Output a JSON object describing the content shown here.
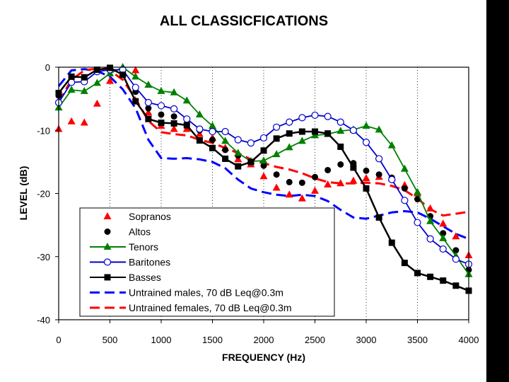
{
  "chart_data": {
    "type": "line",
    "title": "ALL CLASSICFICATIONS",
    "xlabel": "FREQUENCY (Hz)",
    "ylabel": "LEVEL (dB)",
    "xlim": [
      0,
      4000
    ],
    "ylim": [
      -40,
      0
    ],
    "xticks": [
      0,
      500,
      1000,
      1500,
      2000,
      2500,
      3000,
      3500,
      4000
    ],
    "yticks": [
      0,
      -10,
      -20,
      -30,
      -40
    ],
    "grid": "vertical dotted",
    "legend_position": "bottom-left",
    "series": [
      {
        "name": "Sopranos",
        "marker": "triangle",
        "line": "none",
        "color": "#ff0000",
        "x": [
          0,
          125,
          250,
          375,
          500,
          625,
          750,
          875,
          1000,
          1125,
          1250,
          1375,
          1500,
          1625,
          1750,
          1875,
          2000,
          2125,
          2250,
          2375,
          2500,
          2625,
          2750,
          2875,
          3000,
          3125,
          3250,
          3375,
          3500,
          3625,
          3750,
          3875,
          4000
        ],
        "y": [
          -9.8,
          -8.6,
          -8.8,
          -5.8,
          -2.2,
          -1.0,
          -0.5,
          -7.2,
          -9.3,
          -9.8,
          -9.8,
          -10.6,
          -11.2,
          -12.8,
          -14.6,
          -15.4,
          -17.3,
          -19.1,
          -20.2,
          -20.8,
          -19.6,
          -18.6,
          -18.4,
          -18.0,
          -17.6,
          -17.4,
          -17.6,
          -18.7,
          -20.0,
          -22.4,
          -24.8,
          -26.8,
          -29.8
        ]
      },
      {
        "name": "Altos",
        "marker": "circle",
        "line": "none",
        "color": "#000000",
        "x": [
          0,
          125,
          250,
          375,
          500,
          625,
          750,
          875,
          1000,
          1125,
          1250,
          1375,
          1500,
          1625,
          1750,
          1875,
          2000,
          2125,
          2250,
          2375,
          2500,
          2625,
          2750,
          2875,
          3000,
          3125,
          3250,
          3375,
          3500,
          3625,
          3750,
          3875,
          4000
        ],
        "y": [
          -4.5,
          -2.3,
          -2.2,
          -0.6,
          -0.3,
          -0.9,
          -3.9,
          -6.5,
          -7.5,
          -7.8,
          -9.0,
          -10.0,
          -11.5,
          -13.1,
          -14.0,
          -15.0,
          -15.6,
          -17.0,
          -18.2,
          -18.3,
          -17.4,
          -16.3,
          -15.4,
          -15.2,
          -16.4,
          -17.0,
          -17.5,
          -19.2,
          -20.9,
          -23.6,
          -26.3,
          -29.0,
          -32.1
        ]
      },
      {
        "name": "Tenors",
        "marker": "triangle",
        "line": "solid",
        "color": "#008000",
        "x": [
          0,
          125,
          250,
          375,
          500,
          625,
          750,
          875,
          1000,
          1125,
          1250,
          1375,
          1500,
          1625,
          1750,
          1875,
          2000,
          2125,
          2250,
          2375,
          2500,
          2625,
          2750,
          2875,
          3000,
          3125,
          3250,
          3375,
          3500,
          3625,
          3750,
          3875,
          4000
        ],
        "y": [
          -6.4,
          -3.6,
          -3.8,
          -2.5,
          -1.0,
          0.0,
          -1.5,
          -2.8,
          -3.8,
          -4.0,
          -5.3,
          -7.5,
          -9.3,
          -11.7,
          -13.6,
          -14.9,
          -14.8,
          -13.8,
          -12.7,
          -11.7,
          -10.8,
          -10.6,
          -10.1,
          -9.9,
          -9.3,
          -9.9,
          -12.4,
          -16.1,
          -19.8,
          -24.4,
          -27.1,
          -29.9,
          -32.8
        ]
      },
      {
        "name": "Baritones",
        "marker": "open-circle",
        "line": "solid",
        "color": "#0000cc",
        "x": [
          0,
          125,
          250,
          375,
          500,
          625,
          750,
          875,
          1000,
          1125,
          1250,
          1375,
          1500,
          1625,
          1750,
          1875,
          2000,
          2125,
          2250,
          2375,
          2500,
          2625,
          2750,
          2875,
          3000,
          3125,
          3250,
          3375,
          3500,
          3625,
          3750,
          3875,
          4000
        ],
        "y": [
          -5.6,
          -2.4,
          -2.3,
          -0.7,
          -0.4,
          -0.4,
          -3.2,
          -5.6,
          -6.1,
          -6.6,
          -8.2,
          -9.8,
          -10.2,
          -10.2,
          -11.5,
          -12.0,
          -11.2,
          -9.5,
          -8.7,
          -8.0,
          -7.6,
          -7.8,
          -8.7,
          -10.0,
          -11.9,
          -14.5,
          -17.8,
          -21.1,
          -24.6,
          -27.2,
          -28.8,
          -30.4,
          -31.2
        ]
      },
      {
        "name": "Basses",
        "marker": "square",
        "line": "solid",
        "color": "#000000",
        "x": [
          0,
          125,
          250,
          375,
          500,
          625,
          750,
          875,
          1000,
          1125,
          1250,
          1375,
          1500,
          1625,
          1750,
          1875,
          2000,
          2125,
          2250,
          2375,
          2500,
          2625,
          2750,
          2875,
          3000,
          3125,
          3250,
          3375,
          3500,
          3625,
          3750,
          3875,
          4000
        ],
        "y": [
          -4.1,
          -1.5,
          -1.6,
          -0.4,
          -0.1,
          -1.2,
          -5.4,
          -8.2,
          -8.8,
          -8.9,
          -9.2,
          -11.6,
          -12.8,
          -14.5,
          -15.7,
          -15.0,
          -13.2,
          -11.3,
          -10.5,
          -10.2,
          -10.2,
          -10.5,
          -12.6,
          -15.9,
          -19.2,
          -23.8,
          -27.8,
          -31.0,
          -32.6,
          -33.2,
          -33.8,
          -34.6,
          -35.4
        ]
      },
      {
        "name": "Untrained males, 70 dB Leq@0.3m",
        "marker": "none",
        "line": "dashed",
        "color": "#0000ff",
        "x": [
          0,
          125,
          250,
          375,
          500,
          625,
          750,
          875,
          1000,
          1125,
          1250,
          1375,
          1500,
          1625,
          1750,
          1875,
          2000,
          2125,
          2250,
          2375,
          2500,
          2625,
          2750,
          2875,
          3000,
          3125,
          3250,
          3375,
          3500,
          3625,
          3750,
          3875,
          4000
        ],
        "y": [
          -3.0,
          -0.5,
          -0.3,
          -0.6,
          -1.5,
          -3.5,
          -6.5,
          -11.5,
          -14.4,
          -14.5,
          -14.4,
          -14.6,
          -15.0,
          -16.0,
          -17.8,
          -19.2,
          -19.8,
          -20.2,
          -20.4,
          -20.2,
          -20.4,
          -21.2,
          -22.6,
          -23.8,
          -24.0,
          -23.5,
          -23.0,
          -22.8,
          -23.0,
          -24.0,
          -25.2,
          -26.4,
          -27.2
        ]
      },
      {
        "name": "Untrained females, 70 dB Leq@0.3m",
        "marker": "none",
        "line": "dashed",
        "color": "#ff0000",
        "x": [
          0,
          125,
          250,
          375,
          500,
          625,
          750,
          875,
          1000,
          1125,
          1250,
          1375,
          1500,
          1625,
          1750,
          1875,
          2000,
          2125,
          2250,
          2375,
          2500,
          2625,
          2750,
          2875,
          3000,
          3125,
          3250,
          3375,
          3500,
          3625,
          3750,
          3875,
          4000
        ],
        "y": [
          -5.5,
          -2.0,
          -0.5,
          -0.2,
          -0.5,
          -2.0,
          -5.0,
          -8.5,
          -10.3,
          -10.6,
          -10.8,
          -11.5,
          -12.0,
          -12.8,
          -13.6,
          -14.6,
          -15.2,
          -15.8,
          -16.2,
          -16.8,
          -17.6,
          -18.2,
          -18.4,
          -18.4,
          -18.3,
          -18.4,
          -18.8,
          -19.5,
          -20.8,
          -22.5,
          -23.5,
          -23.2,
          -22.9
        ]
      }
    ]
  }
}
